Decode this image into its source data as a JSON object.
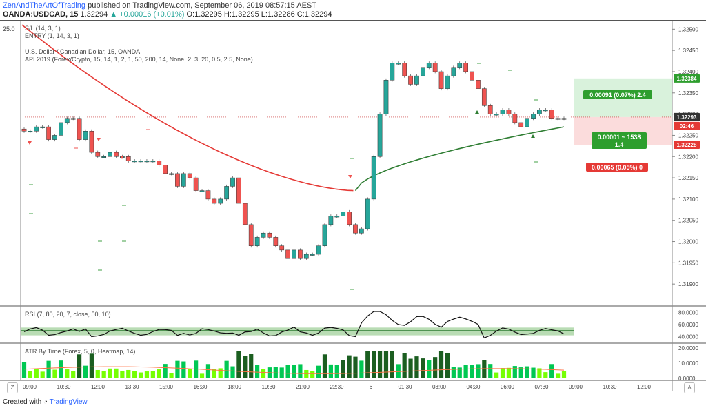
{
  "header": {
    "brand": "ZenAndTheArtOfTrading",
    "published": "published on TradingView.com, September 06, 2019 08:57:15 AEST",
    "symbol": "OANDA:USDCAD, 15",
    "last": "1.32294",
    "change": "▲ +0.00016 (+0.01%)",
    "ohlc": "O:1.32295 H:1.32295 L:1.32286 C:1.32294"
  },
  "panes": {
    "sl_label": "S/L (14, 3, 1)",
    "entry_label": "ENTRY (1, 14, 3, 1)",
    "left_scale": "25.0",
    "main_title": "U.S. Dollar / Canadian Dollar, 15, OANDA",
    "main_study": "API 2019 (Forex/Crypto, 15, 14, 1, 2, 1, 50, 200, 14, None, 2, 3, 20, 0.5, 2.5, None)",
    "rsi_label": "RSI (7, 80, 20, 7, close, 50, 10)",
    "atr_label": "ATR By Time (Forex, 5, 0, Heatmap, 14)"
  },
  "footer": {
    "created": "Created with",
    "tv": "TradingView"
  },
  "buttons": {
    "z": "Z",
    "a": "A"
  },
  "colors": {
    "up": "#26a69a",
    "down": "#ef5350",
    "ma_red": "#e53935",
    "ma_green": "#2e7d32",
    "rsi_band": "#b9dcb4"
  },
  "chart_data": [
    {
      "type": "candlestick",
      "title": "U.S. Dollar / Canadian Dollar, 15, OANDA",
      "ylim": [
        1.3185,
        1.3252
      ],
      "y_ticks": [
        "1.32500",
        "1.32450",
        "1.32400",
        "1.32350",
        "1.32300",
        "1.32250",
        "1.32200",
        "1.32150",
        "1.32100",
        "1.32050",
        "1.32000",
        "1.31950",
        "1.31900"
      ],
      "x_ticks": [
        "09:00",
        "10:30",
        "12:00",
        "13:30",
        "15:00",
        "16:30",
        "18:00",
        "19:30",
        "21:00",
        "22:30",
        "6",
        "01:30",
        "03:00",
        "04:30",
        "06:00",
        "07:30",
        "09:00",
        "10:30",
        "12:00"
      ],
      "price_tags": {
        "target": "1.32384",
        "current": "1.32293",
        "countdown": "02:46",
        "stop": "1.32228"
      },
      "trade_box": {
        "profit": "0.00091 (0.07%) 2.4",
        "mid_line1": "0.00001 ~ 1538",
        "mid_line2": "1.4",
        "loss": "0.00065 (0.05%) 0"
      },
      "close_series": [
        1.3226,
        1.3226,
        1.3227,
        1.3227,
        1.3224,
        1.3225,
        1.3228,
        1.3229,
        1.3229,
        1.3224,
        1.3226,
        1.3221,
        1.322,
        1.322,
        1.3221,
        1.322,
        1.322,
        1.3219,
        1.3219,
        1.3219,
        1.3219,
        1.3219,
        1.3218,
        1.3216,
        1.3216,
        1.3213,
        1.3216,
        1.3215,
        1.3212,
        1.3212,
        1.321,
        1.3209,
        1.321,
        1.3213,
        1.3215,
        1.3209,
        1.3204,
        1.3199,
        1.3201,
        1.3202,
        1.3201,
        1.3199,
        1.3198,
        1.3196,
        1.3198,
        1.3196,
        1.3197,
        1.3197,
        1.3199,
        1.3204,
        1.3206,
        1.3206,
        1.3207,
        1.3204,
        1.3202,
        1.3203,
        1.321,
        1.322,
        1.323,
        1.3238,
        1.3242,
        1.3242,
        1.3239,
        1.3237,
        1.3239,
        1.3241,
        1.3242,
        1.324,
        1.3236,
        1.3239,
        1.3241,
        1.3242,
        1.324,
        1.3238,
        1.3236,
        1.3232,
        1.323,
        1.323,
        1.3231,
        1.323,
        1.3228,
        1.3227,
        1.3229,
        1.323,
        1.3231,
        1.3231,
        1.3229,
        1.3229,
        1.3229
      ],
      "ma_red_endpoints": [
        1.3251,
        1.3212
      ],
      "ma_green_endpoints": [
        1.3212,
        1.3227
      ]
    },
    {
      "type": "line",
      "title": "RSI (7, 80, 20, 7, close, 50, 10)",
      "ylim": [
        30,
        90
      ],
      "y_ticks": [
        "80.0000",
        "60.0000",
        "40.0000"
      ]
    },
    {
      "type": "bar",
      "title": "ATR By Time (Forex, 5, 0, Heatmap, 14)",
      "ylim": [
        0,
        20
      ],
      "y_ticks": [
        "20.0000",
        "10.0000",
        "0.0000"
      ]
    }
  ]
}
